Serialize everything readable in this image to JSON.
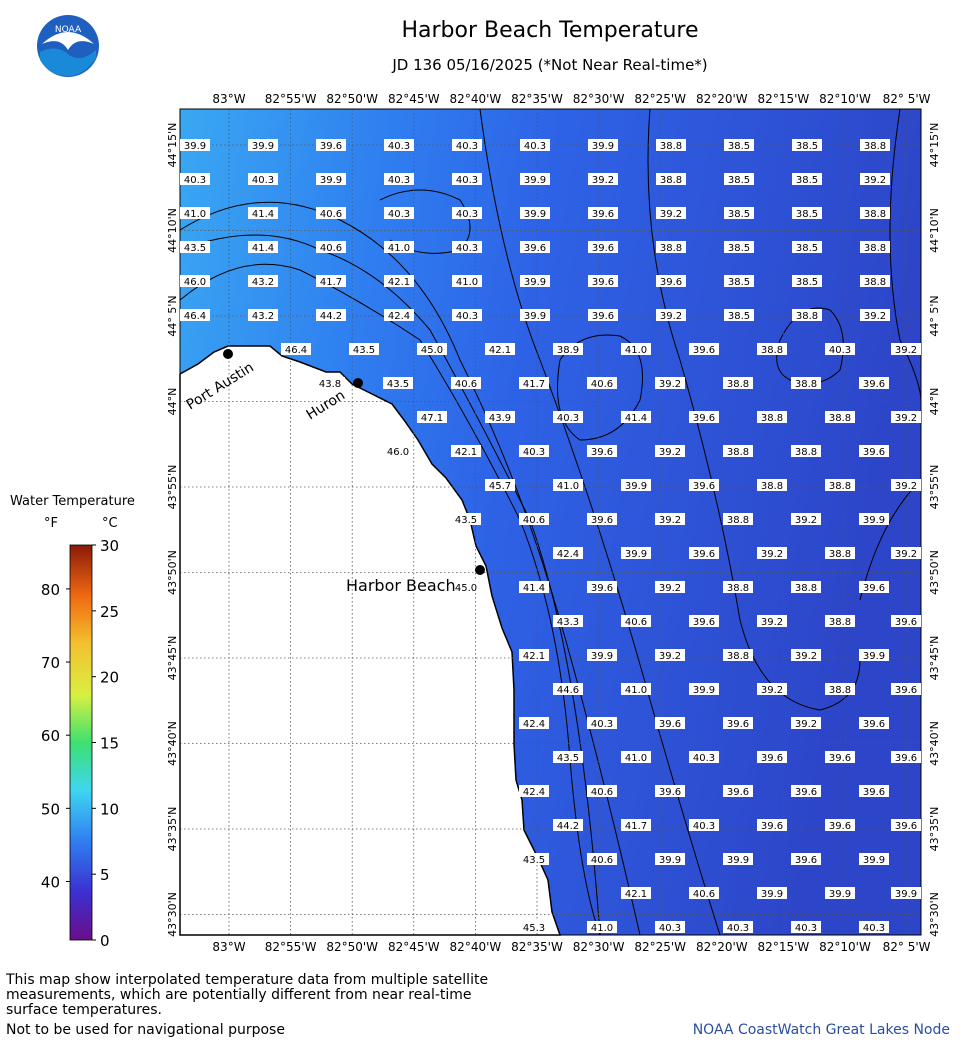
{
  "header": {
    "title": "Harbor Beach Temperature",
    "subtitle": "JD 136 05/16/2025 (*Not Near Real-time*)",
    "logo_text": "NOAA"
  },
  "axes": {
    "lon_labels": [
      "83°W",
      "82°55'W",
      "82°50'W",
      "82°45'W",
      "82°40'W",
      "82°35'W",
      "82°30'W",
      "82°25'W",
      "82°20'W",
      "82°15'W",
      "82°10'W",
      "82° 5'W"
    ],
    "lat_labels": [
      "44°15'N",
      "44°10'N",
      "44° 5'N",
      "44°N",
      "43°55'N",
      "43°50'N",
      "43°45'N",
      "43°40'N",
      "43°35'N",
      "43°30'N"
    ]
  },
  "places": [
    {
      "name": "Port Austin"
    },
    {
      "name": "Huron"
    },
    {
      "name": "Harbor Beach"
    }
  ],
  "temperature_rows": [
    [
      "39.9",
      "39.9",
      "39.6",
      "40.3",
      "40.3",
      "40.3",
      "39.9",
      "38.8",
      "38.5",
      "38.5",
      "38.8"
    ],
    [
      "40.3",
      "40.3",
      "39.9",
      "40.3",
      "40.3",
      "39.9",
      "39.2",
      "38.8",
      "38.5",
      "38.5",
      "39.2"
    ],
    [
      "41.0",
      "41.4",
      "40.6",
      "40.3",
      "40.3",
      "39.9",
      "39.6",
      "39.2",
      "38.5",
      "38.5",
      "38.8"
    ],
    [
      "43.5",
      "41.4",
      "40.6",
      "41.0",
      "40.3",
      "39.6",
      "39.6",
      "38.8",
      "38.5",
      "38.5",
      "38.8"
    ],
    [
      "46.0",
      "43.2",
      "41.7",
      "42.1",
      "41.0",
      "39.9",
      "39.6",
      "39.6",
      "38.5",
      "38.5",
      "38.8"
    ],
    [
      "46.4",
      "43.2",
      "44.2",
      "42.4",
      "40.3",
      "39.9",
      "39.6",
      "39.2",
      "38.5",
      "38.8",
      "39.2"
    ],
    [
      "46.4",
      "43.5",
      "45.0",
      "42.1",
      "38.9",
      "41.0",
      "39.6",
      "38.8",
      "40.3",
      "39.2"
    ],
    [
      "43.8",
      "43.5",
      "40.6",
      "41.7",
      "40.6",
      "39.2",
      "38.8",
      "38.8",
      "39.6"
    ],
    [
      "47.1",
      "43.9",
      "40.3",
      "41.4",
      "39.6",
      "38.8",
      "38.8",
      "39.2"
    ],
    [
      "46.0",
      "42.1",
      "40.3",
      "39.6",
      "39.2",
      "38.8",
      "38.8",
      "39.6"
    ],
    [
      "45.7",
      "41.0",
      "39.9",
      "39.6",
      "38.8",
      "38.8",
      "39.2"
    ],
    [
      "43.5",
      "40.6",
      "39.6",
      "39.2",
      "38.8",
      "39.2",
      "39.9"
    ],
    [
      "42.4",
      "39.9",
      "39.6",
      "39.2",
      "38.8",
      "39.2"
    ],
    [
      "45.0",
      "41.4",
      "39.6",
      "39.2",
      "38.8",
      "38.8",
      "39.6"
    ],
    [
      "43.3",
      "40.6",
      "39.6",
      "39.2",
      "38.8",
      "39.6"
    ],
    [
      "42.1",
      "39.9",
      "39.2",
      "38.8",
      "39.2",
      "39.9"
    ],
    [
      "44.6",
      "41.0",
      "39.9",
      "39.2",
      "38.8",
      "39.6"
    ],
    [
      "42.4",
      "40.3",
      "39.6",
      "39.6",
      "39.2",
      "39.6"
    ],
    [
      "43.5",
      "41.0",
      "40.3",
      "39.6",
      "39.6",
      "39.6"
    ],
    [
      "42.4",
      "40.6",
      "39.6",
      "39.6",
      "39.6",
      "39.6"
    ],
    [
      "44.2",
      "41.7",
      "40.3",
      "39.6",
      "39.6",
      "39.6"
    ],
    [
      "43.5",
      "40.6",
      "39.9",
      "39.9",
      "39.6",
      "39.9"
    ],
    [
      "42.1",
      "40.6",
      "39.9",
      "39.9",
      "39.9"
    ],
    [
      "45.3",
      "41.0",
      "40.3",
      "40.3",
      "40.3",
      "40.3"
    ]
  ],
  "legend": {
    "title": "Water Temperature",
    "unit_f": "°F",
    "unit_c": "°C",
    "f_ticks": [
      "80",
      "70",
      "60",
      "50",
      "40"
    ],
    "c_ticks": [
      "30",
      "25",
      "20",
      "15",
      "10",
      "5",
      "0"
    ],
    "c_min": 0,
    "c_max": 30,
    "f_values": [
      80,
      70,
      60,
      50,
      40
    ]
  },
  "footer": {
    "note": "This map show interpolated temperature data from multiple satellite measurements, which are potentially different from near real-time surface temperatures.",
    "nav_warning": "Not to be used for navigational purpose",
    "credit": "NOAA CoastWatch Great Lakes Node"
  },
  "colors": {
    "water": "#2f63e8",
    "water_warm": "#3aa0f0",
    "land": "#ffffff",
    "grid": "#444444"
  }
}
